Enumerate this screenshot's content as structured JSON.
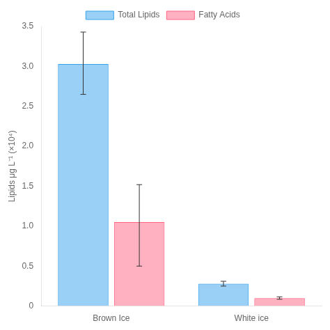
{
  "chart_data": {
    "type": "bar",
    "ylabel": "Lipids μg L⁻¹ (×10⁴)",
    "categories": [
      "Brown Ice",
      "White ice"
    ],
    "series": [
      {
        "name": "Total Lipids",
        "values": [
          3.03,
          0.28
        ],
        "errors_upper": [
          0.4,
          0.03
        ],
        "errors_lower": [
          0.38,
          0.03
        ]
      },
      {
        "name": "Fatty Acids",
        "values": [
          1.05,
          0.1
        ],
        "errors_upper": [
          0.47,
          0.015
        ],
        "errors_lower": [
          0.55,
          0.015
        ]
      }
    ],
    "ylim": [
      0,
      3.5
    ],
    "yticks": [
      0,
      0.5,
      {
        "value": 1,
        "label": "1.0"
      },
      1.5,
      {
        "value": 2,
        "label": "2.0"
      },
      2.5,
      {
        "value": 3,
        "label": "3.0"
      },
      3.5
    ],
    "grid": false,
    "legend": "top"
  }
}
